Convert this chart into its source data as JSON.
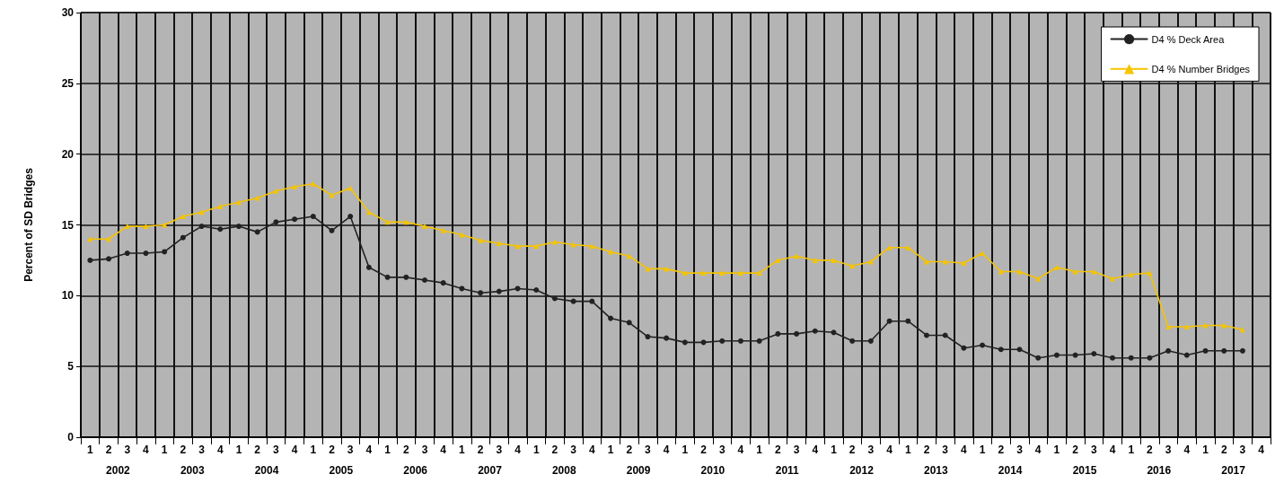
{
  "chart_data": {
    "type": "line",
    "ylabel": "Percent of SD Bridges",
    "categories": [
      "1",
      "2",
      "3",
      "4",
      "1",
      "2",
      "3",
      "4",
      "1",
      "2",
      "3",
      "4",
      "1",
      "2",
      "3",
      "4",
      "1",
      "2",
      "3",
      "4",
      "1",
      "2",
      "3",
      "4",
      "1",
      "2",
      "3",
      "4",
      "1",
      "2",
      "3",
      "4",
      "1",
      "2",
      "3",
      "4",
      "1",
      "2",
      "3",
      "4",
      "1",
      "2",
      "3",
      "4",
      "1",
      "2",
      "3",
      "4",
      "1",
      "2",
      "3",
      "4",
      "1",
      "2",
      "3",
      "4",
      "1",
      "2",
      "3",
      "4",
      "1",
      "2",
      "3",
      "4"
    ],
    "annotations": [
      "2002",
      "2003",
      "2004",
      "2005",
      "2006",
      "2007",
      "2008",
      "2009",
      "2010",
      "2011",
      "2012",
      "2013",
      "2014",
      "2015",
      "2016",
      "2017"
    ],
    "series": [
      {
        "name": "D4 % Deck Area",
        "color": "#222222",
        "marker": "circle",
        "values": [
          12.5,
          12.6,
          13.0,
          13.0,
          13.1,
          14.1,
          14.9,
          14.7,
          14.9,
          14.5,
          15.2,
          15.4,
          15.6,
          14.6,
          15.6,
          12.0,
          11.3,
          11.3,
          11.1,
          10.9,
          10.5,
          10.2,
          10.3,
          10.5,
          10.4,
          9.8,
          9.6,
          9.6,
          8.4,
          8.1,
          7.1,
          7.0,
          6.7,
          6.7,
          6.8,
          6.8,
          6.8,
          7.3,
          7.3,
          7.5,
          7.4,
          6.8,
          6.8,
          8.2,
          8.2,
          7.2,
          7.2,
          6.3,
          6.5,
          6.2,
          6.2,
          5.6,
          5.8,
          5.8,
          5.9,
          5.6,
          5.6,
          5.6,
          6.1,
          5.8,
          6.1,
          6.1,
          6.1,
          null
        ]
      },
      {
        "name": "D4 % Number Bridges",
        "color": "#f5c400",
        "marker": "triangle",
        "values": [
          14.0,
          14.0,
          14.9,
          14.9,
          15.0,
          15.6,
          15.9,
          16.3,
          16.6,
          16.9,
          17.4,
          17.7,
          17.9,
          17.1,
          17.6,
          15.9,
          15.2,
          15.2,
          14.9,
          14.6,
          14.3,
          13.9,
          13.7,
          13.5,
          13.5,
          13.8,
          13.6,
          13.5,
          13.1,
          12.8,
          11.9,
          11.9,
          11.6,
          11.6,
          11.6,
          11.6,
          11.6,
          12.5,
          12.8,
          12.5,
          12.5,
          12.1,
          12.4,
          13.4,
          13.4,
          12.4,
          12.4,
          12.3,
          13.0,
          11.7,
          11.7,
          11.2,
          12.0,
          11.7,
          11.7,
          11.2,
          11.5,
          11.6,
          7.8,
          7.8,
          7.9,
          7.9,
          7.6,
          null
        ]
      }
    ],
    "ylim": [
      0,
      30
    ],
    "yticks": [
      0,
      5,
      10,
      15,
      20,
      25,
      30
    ],
    "grid": true,
    "legend": "top right",
    "line_style": "solid"
  }
}
